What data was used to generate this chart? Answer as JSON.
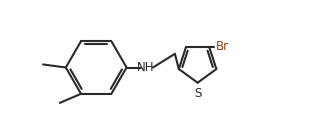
{
  "bg_color": "#ffffff",
  "line_color": "#2a2a2a",
  "line_width": 1.5,
  "font_size_atom": 8.5,
  "font_color": "#2a2a2a",
  "Br_color": "#8B4513",
  "label_NH": "NH",
  "label_S": "S",
  "label_Br": "Br",
  "xlim": [
    -0.5,
    8.5
  ],
  "ylim": [
    -1.2,
    3.2
  ]
}
